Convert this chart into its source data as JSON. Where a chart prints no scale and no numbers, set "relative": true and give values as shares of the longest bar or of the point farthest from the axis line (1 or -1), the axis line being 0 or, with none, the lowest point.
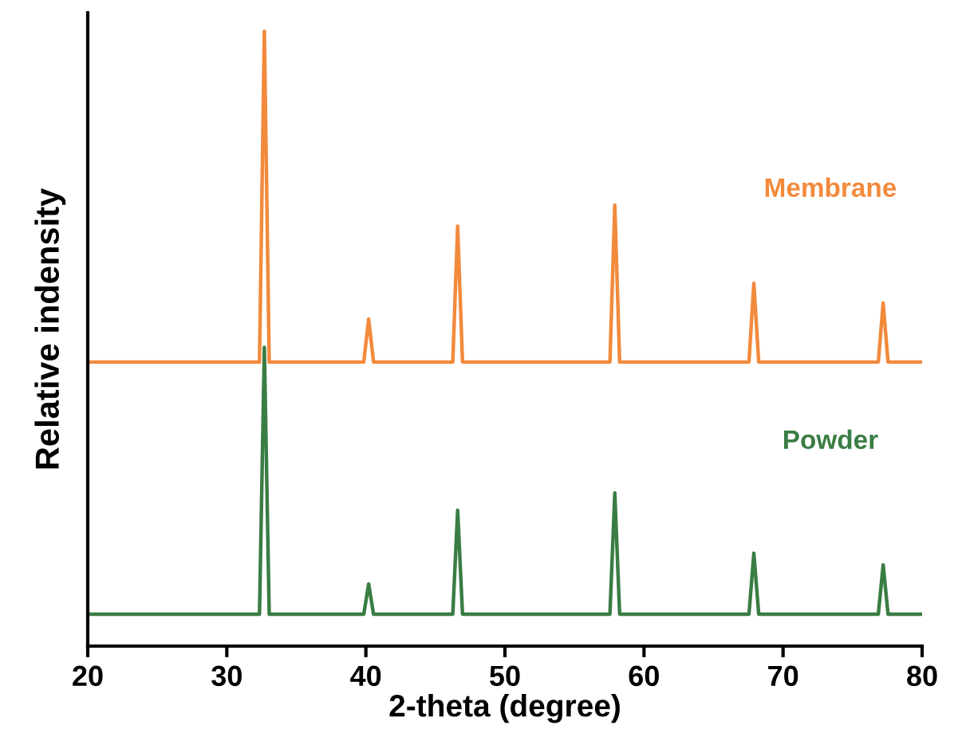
{
  "chart_data": {
    "type": "line",
    "relative": true,
    "xlabel": "2-theta (degree)",
    "ylabel": "Relative indensity",
    "xlim": [
      20,
      80
    ],
    "xticks": [
      20,
      30,
      40,
      50,
      60,
      70,
      80
    ],
    "grid": false,
    "legend": false,
    "marker": "none",
    "line_style": "solid",
    "series": [
      {
        "name": "Membrane",
        "color": "#f28a3c",
        "x": [
          20,
          32.35,
          32.7,
          33.05,
          39.85,
          40.2,
          40.55,
          46.25,
          46.6,
          46.95,
          57.55,
          57.9,
          58.25,
          67.55,
          67.9,
          68.25,
          76.85,
          77.2,
          77.55,
          80
        ],
        "values": [
          0.462,
          0.462,
          1,
          0.462,
          0.462,
          0.532,
          0.462,
          0.462,
          0.683,
          0.462,
          0.462,
          0.717,
          0.462,
          0.462,
          0.59,
          0.462,
          0.462,
          0.558,
          0.462,
          0.462
        ]
      },
      {
        "name": "Powder",
        "color": "#3a7d44",
        "x": [
          20,
          32.35,
          32.7,
          33.05,
          39.85,
          40.2,
          40.55,
          46.25,
          46.6,
          46.95,
          57.55,
          57.9,
          58.25,
          67.55,
          67.9,
          68.25,
          76.85,
          77.2,
          77.55,
          80
        ],
        "values": [
          0.052,
          0.052,
          0.486,
          0.052,
          0.052,
          0.101,
          0.052,
          0.052,
          0.221,
          0.052,
          0.052,
          0.249,
          0.052,
          0.052,
          0.151,
          0.052,
          0.052,
          0.132,
          0.052,
          0.052
        ]
      }
    ]
  }
}
